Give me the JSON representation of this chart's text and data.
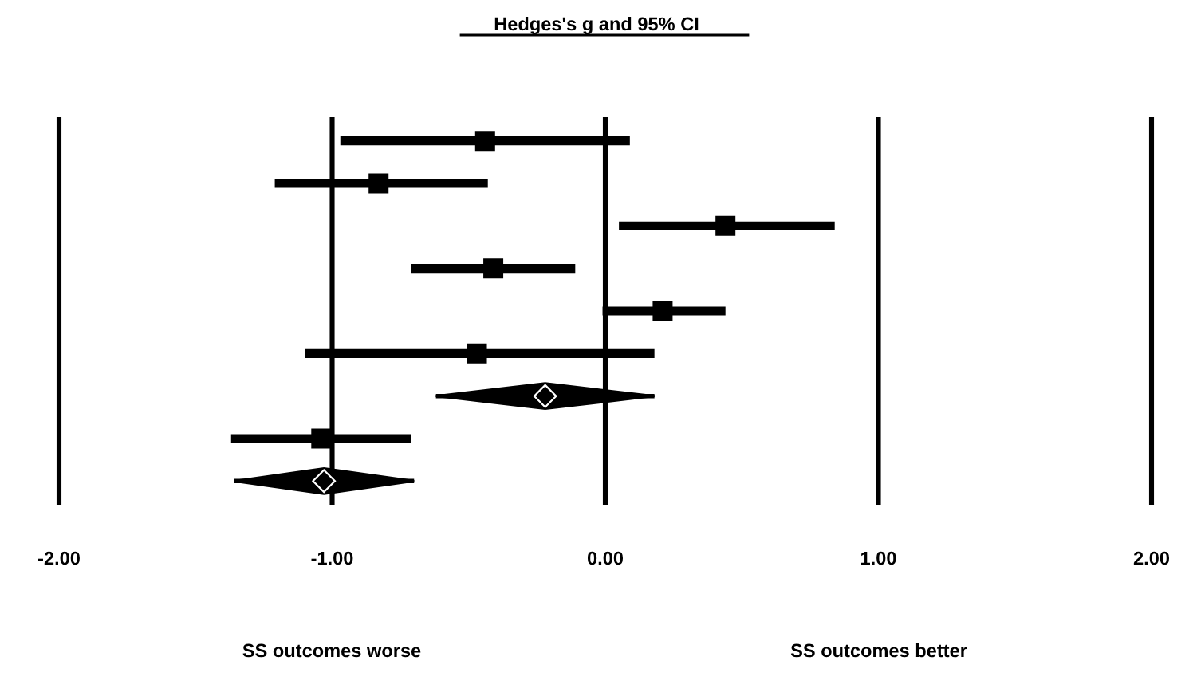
{
  "chart_data": {
    "type": "scatter",
    "orientation": "horizontal",
    "title": "Hedges's g and 95% CI",
    "categories": [
      null,
      null,
      null,
      null,
      null,
      null,
      null,
      null,
      null
    ],
    "series": [
      {
        "type": "scatter",
        "marker": "square",
        "color": "#000000",
        "values": [
          -0.44,
          -0.83,
          0.44,
          -0.41,
          0.21,
          -0.47,
          null,
          -1.04,
          null
        ],
        "errors": [
          [
            -0.97,
            0.09
          ],
          [
            -1.21,
            -0.43
          ],
          [
            0.05,
            0.84
          ],
          [
            -0.71,
            -0.11
          ],
          [
            -0.01,
            0.44
          ],
          [
            -1.1,
            0.18
          ],
          null,
          [
            -1.37,
            -0.71
          ],
          null
        ]
      },
      {
        "type": "scatter",
        "marker": "diamond",
        "color": "#000000",
        "values": [
          null,
          null,
          null,
          null,
          null,
          null,
          -0.22,
          null,
          -1.03
        ],
        "errors": [
          null,
          null,
          null,
          null,
          null,
          null,
          [
            -0.62,
            0.18
          ],
          null,
          [
            -1.36,
            -0.7
          ]
        ]
      }
    ],
    "xlim": [
      -2,
      2
    ],
    "xticks": [
      {
        "value": -2,
        "label": "-2.00"
      },
      {
        "value": -1,
        "label": "-1.00"
      },
      {
        "value": 0,
        "label": "0.00"
      },
      {
        "value": 1,
        "label": "1.00"
      },
      {
        "value": 2,
        "label": "2.00"
      }
    ],
    "grid": "x",
    "annotations": [
      "SS outcomes worse",
      "SS outcomes better"
    ]
  }
}
